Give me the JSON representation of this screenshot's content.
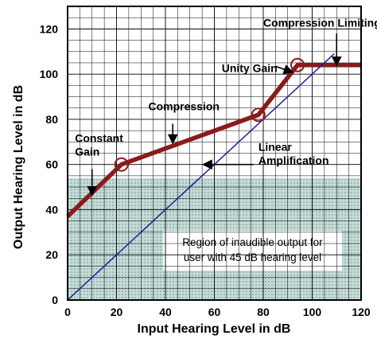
{
  "chart_data": {
    "type": "line",
    "xlabel": "Input Hearing Level in dB",
    "ylabel": "Output Hearing Level in dB",
    "xlim": [
      0,
      120
    ],
    "ylim": [
      0,
      130
    ],
    "x_ticks": [
      0,
      20,
      40,
      60,
      80,
      100,
      120
    ],
    "y_ticks": [
      0,
      20,
      40,
      60,
      80,
      100,
      120
    ],
    "grid": true,
    "series": [
      {
        "color": "#8b1a1a",
        "x": [
          0,
          22,
          78,
          94,
          120
        ],
        "y": [
          37,
          60,
          82,
          104,
          104
        ]
      },
      {
        "color": "#1c1c9e",
        "x": [
          0,
          109
        ],
        "y": [
          0,
          109
        ]
      }
    ],
    "markers": [
      {
        "x": 22,
        "y": 60
      },
      {
        "x": 78,
        "y": 82
      },
      {
        "x": 94,
        "y": 104
      }
    ],
    "region": {
      "y_range": [
        0,
        54
      ],
      "lines": [
        "Region of inaudible output for",
        "user with 45 dB hearing level"
      ],
      "fill": "#c4dcd8"
    },
    "annotations": [
      {
        "text_lines": [
          "Compression Limiting"
        ],
        "label_x": 80,
        "label_y": 121,
        "arrow_to": [
          110,
          104.5
        ]
      },
      {
        "text_lines": [
          "Unity Gain"
        ],
        "label_x": 63,
        "label_y": 101,
        "arrow_to": [
          91.5,
          101
        ]
      },
      {
        "text_lines": [
          "Compression"
        ],
        "label_x": 33,
        "label_y": 84,
        "arrow_to": [
          43,
          70
        ]
      },
      {
        "text_lines": [
          "Constant",
          "Gain"
        ],
        "label_x": 3,
        "label_y": 70,
        "arrow_to": [
          10,
          47
        ]
      },
      {
        "text_lines": [
          "Linear",
          "Amplification"
        ],
        "label_x": 78,
        "label_y": 66,
        "arrow_to": [
          56,
          60
        ]
      }
    ]
  }
}
